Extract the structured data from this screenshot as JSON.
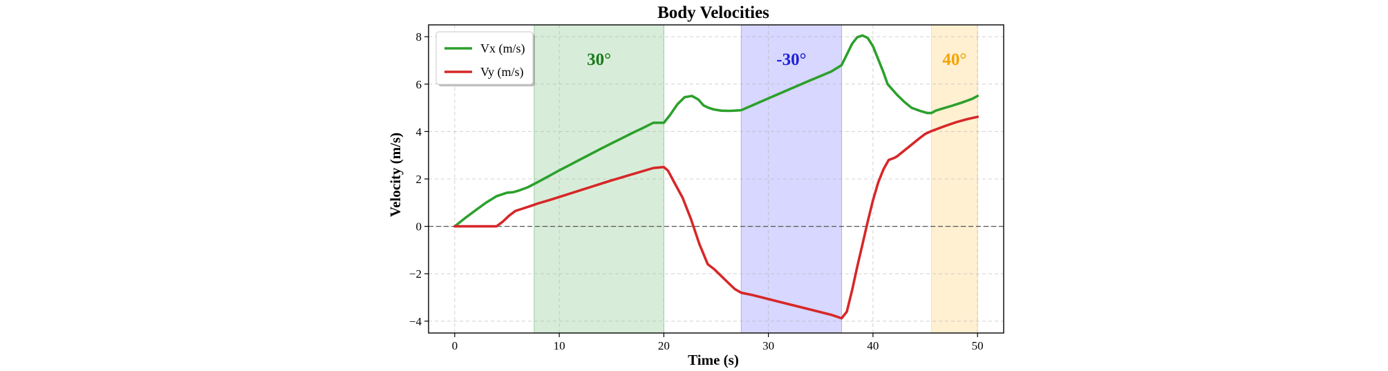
{
  "chart_data": {
    "type": "line",
    "title": "Body Velocities",
    "xlabel": "Time (s)",
    "ylabel": "Velocity (m/s)",
    "xlim": [
      -2.5,
      52.5
    ],
    "ylim": [
      -4.5,
      8.5
    ],
    "xticks": [
      0,
      10,
      20,
      30,
      40,
      50
    ],
    "yticks": [
      -4,
      -2,
      0,
      2,
      4,
      6,
      8
    ],
    "ytick_labels": [
      "−4",
      "−2",
      "0",
      "2",
      "4",
      "6",
      "8"
    ],
    "grid": true,
    "zero_line": true,
    "legend_position": "top-left",
    "regions": [
      {
        "x0": 7.6,
        "x1": 20.0,
        "label": "30°",
        "fill": "#4caf50",
        "opacity": 0.22,
        "text_color": "#1a7a1a"
      },
      {
        "x0": 27.4,
        "x1": 37.0,
        "label": "-30°",
        "fill": "#6f6fff",
        "opacity": 0.28,
        "text_color": "#2020d8"
      },
      {
        "x0": 45.6,
        "x1": 50.0,
        "label": "40°",
        "fill": "#ffc44d",
        "opacity": 0.25,
        "text_color": "#f5a300"
      }
    ],
    "series": [
      {
        "name": "Vx (m/s)",
        "color": "#2ca02c",
        "x": [
          0,
          1,
          2,
          3,
          4,
          5,
          5.6,
          6.2,
          7,
          8,
          9,
          10,
          11,
          12,
          13,
          14,
          15,
          16,
          17,
          18,
          19,
          20,
          20.6,
          21.3,
          22,
          22.7,
          23.3,
          23.8,
          24.3,
          24.8,
          25.5,
          26.3,
          27.0,
          27.4,
          28.5,
          30,
          32,
          34,
          36,
          37,
          37.5,
          38.0,
          38.5,
          39.0,
          39.5,
          40.0,
          40.5,
          41.0,
          41.4,
          41.8,
          42.3,
          43.0,
          43.7,
          44.5,
          45.2,
          45.6,
          46.0,
          46.5,
          47.5,
          48.5,
          49.5,
          50.0
        ],
        "values": [
          0,
          0.35,
          0.68,
          1.0,
          1.27,
          1.42,
          1.44,
          1.52,
          1.65,
          1.88,
          2.12,
          2.36,
          2.59,
          2.82,
          3.05,
          3.28,
          3.5,
          3.72,
          3.94,
          4.15,
          4.37,
          4.37,
          4.7,
          5.15,
          5.45,
          5.5,
          5.35,
          5.1,
          5.0,
          4.93,
          4.88,
          4.87,
          4.89,
          4.9,
          5.11,
          5.4,
          5.78,
          6.16,
          6.53,
          6.8,
          7.25,
          7.7,
          7.98,
          8.05,
          7.95,
          7.6,
          7.05,
          6.5,
          6.0,
          5.8,
          5.55,
          5.25,
          5.0,
          4.87,
          4.78,
          4.78,
          4.88,
          4.95,
          5.08,
          5.22,
          5.38,
          5.5
        ]
      },
      {
        "name": "Vy (m/s)",
        "color": "#d62728",
        "x": [
          0,
          1,
          2,
          3,
          4,
          4.6,
          5.2,
          5.8,
          6.5,
          7.2,
          8,
          9,
          10,
          11,
          12,
          13,
          14,
          15,
          16,
          17,
          18,
          19,
          20,
          20.4,
          21.0,
          21.8,
          22.6,
          23.4,
          24.2,
          24.8,
          25.5,
          26.2,
          26.8,
          27.4,
          28.5,
          30,
          32,
          34,
          36,
          37,
          37.5,
          38.0,
          38.5,
          39.0,
          39.5,
          40.0,
          40.5,
          41.0,
          41.5,
          42.0,
          42.3,
          43.0,
          43.7,
          44.4,
          45.0,
          45.6,
          46.2,
          47.0,
          48.0,
          49.0,
          50.0
        ],
        "values": [
          0,
          0,
          0,
          0,
          0,
          0.2,
          0.45,
          0.65,
          0.75,
          0.85,
          0.97,
          1.1,
          1.24,
          1.38,
          1.52,
          1.66,
          1.8,
          1.94,
          2.07,
          2.2,
          2.33,
          2.46,
          2.5,
          2.35,
          1.85,
          1.2,
          0.3,
          -0.75,
          -1.6,
          -1.8,
          -2.1,
          -2.4,
          -2.65,
          -2.8,
          -2.9,
          -3.07,
          -3.29,
          -3.51,
          -3.73,
          -3.88,
          -3.6,
          -2.7,
          -1.7,
          -0.75,
          0.2,
          1.1,
          1.85,
          2.4,
          2.8,
          2.88,
          2.95,
          3.2,
          3.45,
          3.7,
          3.9,
          4.02,
          4.12,
          4.25,
          4.4,
          4.52,
          4.62
        ]
      }
    ]
  }
}
